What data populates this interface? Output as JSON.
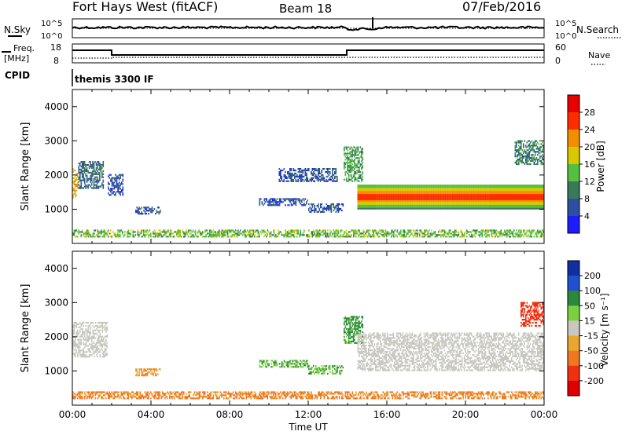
{
  "header": {
    "station": "Fort Hays West (fitACF)",
    "beam": "Beam 18",
    "date": "07/Feb/2016"
  },
  "status_panels": {
    "nsky_label": "N.Sky",
    "nsearch_label": "N.Search",
    "noise_ticks": [
      "10^5",
      "10^0"
    ],
    "freq_label_1": "Freq.",
    "freq_label_2": "[MHz]",
    "freq_ticks": [
      "18",
      "8"
    ],
    "nave_label": "Nave",
    "nave_ticks": [
      "60",
      "0"
    ],
    "cpid_label": "CPID",
    "cpid_text": "themis 3300 IF"
  },
  "axes": {
    "x_ticks": [
      "00:00",
      "04:00",
      "08:00",
      "12:00",
      "16:00",
      "20:00",
      "00:00"
    ],
    "xlabel": "Time UT",
    "ylabel": "Slant Range [km]",
    "y_ticks": [
      "1000",
      "2000",
      "3000",
      "4000"
    ]
  },
  "colorbars": {
    "power_label": "Power [dB]",
    "power_ticks": [
      "4",
      "8",
      "12",
      "16",
      "20",
      "24",
      "28"
    ],
    "power_colors": [
      "#1c1cff",
      "#2e4fa0",
      "#3a7a5a",
      "#55c040",
      "#d8c800",
      "#f09000",
      "#ff2c00",
      "#e80000"
    ],
    "velocity_label": "Velocity [m s⁻¹]",
    "velocity_ticks": [
      "200",
      "100",
      "50",
      "15",
      "-15",
      "-50",
      "-100",
      "-200"
    ],
    "velocity_colors": [
      "#1030a0",
      "#1e50d0",
      "#2a8a3a",
      "#7bd040",
      "#c8c8c0",
      "#e8a830",
      "#f07820",
      "#f03010",
      "#e00000"
    ]
  },
  "chart_data": [
    {
      "type": "heatmap",
      "panel": "Power",
      "xlabel": "Time UT",
      "ylabel": "Slant Range [km]",
      "xlim_hours": [
        0,
        24
      ],
      "ylim_km": [
        0,
        4500
      ],
      "colorbar": "Power [dB]",
      "clim": [
        0,
        32
      ],
      "regions": [
        {
          "t0": 0.0,
          "t1": 0.3,
          "r0": 1300,
          "r1": 2200,
          "value": 20
        },
        {
          "t0": 0.3,
          "t1": 1.6,
          "r0": 1600,
          "r1": 2400,
          "value": 8
        },
        {
          "t0": 1.8,
          "t1": 2.6,
          "r0": 1400,
          "r1": 2000,
          "value": 6
        },
        {
          "t0": 3.2,
          "t1": 4.5,
          "r0": 850,
          "r1": 1050,
          "value": 6
        },
        {
          "t0": 9.5,
          "t1": 12.0,
          "r0": 1100,
          "r1": 1300,
          "value": 6
        },
        {
          "t0": 10.5,
          "t1": 13.5,
          "r0": 1800,
          "r1": 2200,
          "value": 6
        },
        {
          "t0": 12.0,
          "t1": 13.8,
          "r0": 900,
          "r1": 1150,
          "value": 6
        },
        {
          "t0": 13.8,
          "t1": 14.8,
          "r0": 1800,
          "r1": 2800,
          "value": 12
        },
        {
          "t0": 14.5,
          "t1": 24.0,
          "r0": 1000,
          "r1": 1700,
          "value": 28
        },
        {
          "t0": 22.5,
          "t1": 24.0,
          "r0": 2300,
          "r1": 3000,
          "value": 10
        },
        {
          "t0": 0.0,
          "t1": 24.0,
          "r0": 180,
          "r1": 400,
          "value": 14
        }
      ]
    },
    {
      "type": "heatmap",
      "panel": "Velocity",
      "xlabel": "Time UT",
      "ylabel": "Slant Range [km]",
      "xlim_hours": [
        0,
        24
      ],
      "ylim_km": [
        0,
        4500
      ],
      "colorbar": "Velocity [m s⁻¹]",
      "clim": [
        -200,
        200
      ],
      "regions": [
        {
          "t0": 0.0,
          "t1": 1.8,
          "r0": 1400,
          "r1": 2400,
          "value": 0
        },
        {
          "t0": 3.2,
          "t1": 4.5,
          "r0": 850,
          "r1": 1050,
          "value": -30
        },
        {
          "t0": 9.5,
          "t1": 12.0,
          "r0": 1100,
          "r1": 1300,
          "value": 30
        },
        {
          "t0": 12.0,
          "t1": 13.8,
          "r0": 900,
          "r1": 1150,
          "value": 30
        },
        {
          "t0": 13.8,
          "t1": 14.8,
          "r0": 1800,
          "r1": 2600,
          "value": 40
        },
        {
          "t0": 14.5,
          "t1": 24.0,
          "r0": 1000,
          "r1": 2100,
          "value": 0
        },
        {
          "t0": 22.8,
          "t1": 24.0,
          "r0": 2300,
          "r1": 3000,
          "value": -120
        },
        {
          "t0": 0.0,
          "t1": 24.0,
          "r0": 180,
          "r1": 400,
          "value": -40
        }
      ]
    }
  ]
}
